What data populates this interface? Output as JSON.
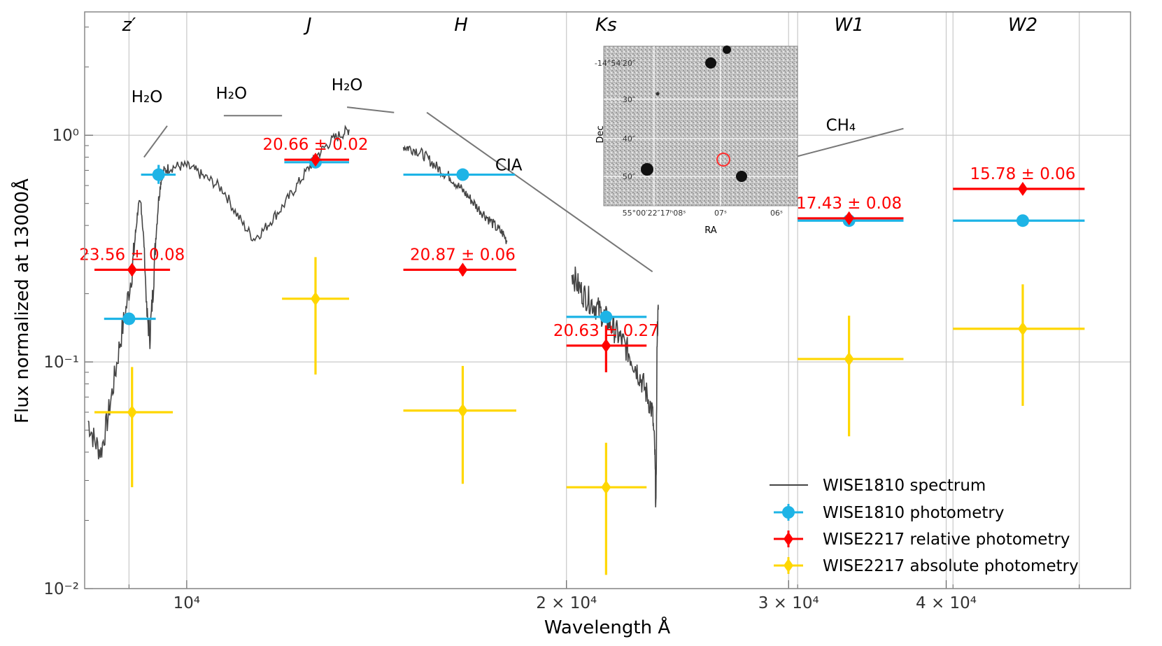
{
  "chart_data": {
    "type": "scatter",
    "title": "",
    "xlabel": "Wavelength Å",
    "ylabel": "Flux normalized at 13000Å",
    "xscale": "log",
    "yscale": "log",
    "xlim": [
      8300,
      56000
    ],
    "ylim": [
      0.01,
      3.5
    ],
    "grid": true,
    "x_ticks": [
      {
        "value": 10000,
        "label": "10⁴"
      },
      {
        "value": 20000,
        "label": "2 × 10⁴"
      },
      {
        "value": 30000,
        "label": "3 × 10⁴"
      },
      {
        "value": 40000,
        "label": "4 × 10⁴"
      }
    ],
    "y_ticks": [
      {
        "value": 1,
        "label": "10⁰"
      },
      {
        "value": 0.1,
        "label": "10⁻¹"
      },
      {
        "value": 0.01,
        "label": "10⁻²"
      }
    ],
    "bands": [
      {
        "name": "z′",
        "x": 9000
      },
      {
        "name": "J",
        "x": 12500
      },
      {
        "name": "H",
        "x": 16500
      },
      {
        "name": "Ks",
        "x": 21500
      },
      {
        "name": "W1",
        "x": 33500
      },
      {
        "name": "W2",
        "x": 46000
      }
    ],
    "band_grid_x": [
      9000,
      30500,
      40500,
      51000
    ],
    "spectrum": {
      "name": "WISE1810 spectrum",
      "color": "#444444",
      "segments": [
        [
          [
            8350,
            0.055
          ],
          [
            8450,
            0.045
          ],
          [
            8550,
            0.04
          ],
          [
            8650,
            0.055
          ],
          [
            8750,
            0.08
          ],
          [
            8850,
            0.12
          ],
          [
            8950,
            0.17
          ],
          [
            9050,
            0.25
          ],
          [
            9100,
            0.35
          ],
          [
            9150,
            0.48
          ],
          [
            9200,
            0.5
          ],
          [
            9250,
            0.33
          ],
          [
            9300,
            0.16
          ],
          [
            9350,
            0.13
          ],
          [
            9400,
            0.2
          ],
          [
            9450,
            0.35
          ],
          [
            9500,
            0.52
          ],
          [
            9550,
            0.66
          ],
          [
            9600,
            0.7
          ],
          [
            9700,
            0.72
          ],
          [
            9850,
            0.73
          ],
          [
            10000,
            0.73
          ],
          [
            10150,
            0.7
          ],
          [
            10300,
            0.66
          ],
          [
            10500,
            0.62
          ],
          [
            10700,
            0.57
          ],
          [
            10900,
            0.47
          ],
          [
            11100,
            0.4
          ],
          [
            11300,
            0.35
          ],
          [
            11500,
            0.38
          ],
          [
            11700,
            0.43
          ],
          [
            11900,
            0.48
          ],
          [
            12100,
            0.55
          ],
          [
            12300,
            0.63
          ],
          [
            12500,
            0.72
          ],
          [
            12700,
            0.82
          ],
          [
            12900,
            0.9
          ],
          [
            13100,
            0.97
          ],
          [
            13300,
            1.02
          ],
          [
            13450,
            1.06
          ]
        ],
        [
          [
            14850,
            0.89
          ],
          [
            15000,
            0.88
          ],
          [
            15200,
            0.86
          ],
          [
            15400,
            0.82
          ],
          [
            15600,
            0.77
          ],
          [
            15800,
            0.72
          ],
          [
            16000,
            0.68
          ],
          [
            16200,
            0.65
          ],
          [
            16400,
            0.6
          ],
          [
            16600,
            0.56
          ],
          [
            16800,
            0.52
          ],
          [
            17000,
            0.48
          ],
          [
            17200,
            0.45
          ],
          [
            17400,
            0.42
          ],
          [
            17600,
            0.39
          ],
          [
            17800,
            0.37
          ],
          [
            17950,
            0.34
          ]
        ],
        [
          [
            20200,
            0.25
          ],
          [
            20400,
            0.22
          ],
          [
            20600,
            0.2
          ],
          [
            20800,
            0.19
          ],
          [
            21000,
            0.18
          ],
          [
            21200,
            0.17
          ],
          [
            21400,
            0.16
          ],
          [
            21600,
            0.15
          ],
          [
            21800,
            0.14
          ],
          [
            22000,
            0.13
          ],
          [
            22200,
            0.12
          ],
          [
            22400,
            0.11
          ],
          [
            22600,
            0.1
          ],
          [
            22800,
            0.09
          ],
          [
            23000,
            0.08
          ],
          [
            23200,
            0.07
          ],
          [
            23400,
            0.06
          ],
          [
            23500,
            0.04
          ],
          [
            23550,
            0.022
          ],
          [
            23600,
            0.13
          ],
          [
            23650,
            0.17
          ]
        ]
      ]
    },
    "series": [
      {
        "name": "WISE1810 photometry",
        "color": "#1EB4E6",
        "marker": "circle",
        "points": [
          {
            "x": 9000,
            "y": 0.155,
            "xerr": [
              8600,
              9450
            ]
          },
          {
            "x": 9500,
            "y": 0.67,
            "xerr": [
              9200,
              9800
            ],
            "yerr": [
              0.61,
              0.74
            ]
          },
          {
            "x": 12650,
            "y": 0.76,
            "xerr": [
              11950,
              13450
            ]
          },
          {
            "x": 16550,
            "y": 0.67,
            "xerr": [
              14850,
              18200
            ]
          },
          {
            "x": 21500,
            "y": 0.158,
            "xerr": [
              20000,
              23150
            ]
          },
          {
            "x": 33500,
            "y": 0.42,
            "xerr": [
              30500,
              37000
            ]
          },
          {
            "x": 46000,
            "y": 0.42,
            "xerr": [
              40500,
              51500
            ]
          }
        ]
      },
      {
        "name": "WISE2217 relative photometry",
        "color": "#ff0000",
        "marker": "diamond",
        "points": [
          {
            "x": 9050,
            "y": 0.255,
            "xerr": [
              8450,
              9700
            ],
            "yerr": [
              0.24,
              0.27
            ],
            "label": "23.56 ± 0.08"
          },
          {
            "x": 12650,
            "y": 0.78,
            "xerr": [
              11950,
              13450
            ],
            "yerr": [
              0.76,
              0.8
            ],
            "label": "20.66 ± 0.02"
          },
          {
            "x": 16550,
            "y": 0.255,
            "xerr": [
              14850,
              18250
            ],
            "yerr": [
              0.24,
              0.27
            ],
            "label": "20.87 ± 0.06"
          },
          {
            "x": 21500,
            "y": 0.118,
            "xerr": [
              20000,
              23150
            ],
            "yerr": [
              0.09,
              0.145
            ],
            "label": "20.63 ± 0.27"
          },
          {
            "x": 33500,
            "y": 0.43,
            "xerr": [
              30500,
              37000
            ],
            "yerr": [
              0.41,
              0.45
            ],
            "label": "17.43 ± 0.08"
          },
          {
            "x": 46000,
            "y": 0.58,
            "xerr": [
              40500,
              51500
            ],
            "yerr": [
              0.55,
              0.61
            ],
            "label": "15.78 ± 0.06"
          }
        ]
      },
      {
        "name": "WISE2217 absolute photometry",
        "color": "#FFD700",
        "marker": "diamond",
        "points": [
          {
            "x": 9050,
            "y": 0.06,
            "xerr": [
              8450,
              9750
            ],
            "yerr": [
              0.028,
              0.095
            ]
          },
          {
            "x": 12650,
            "y": 0.19,
            "xerr": [
              11900,
              13450
            ],
            "yerr": [
              0.088,
              0.29
            ]
          },
          {
            "x": 16550,
            "y": 0.061,
            "xerr": [
              14850,
              18250
            ],
            "yerr": [
              0.029,
              0.096
            ]
          },
          {
            "x": 21500,
            "y": 0.028,
            "xerr": [
              20000,
              23150
            ],
            "yerr": [
              0.0115,
              0.044
            ]
          },
          {
            "x": 33500,
            "y": 0.103,
            "xerr": [
              30500,
              37000
            ],
            "yerr": [
              0.047,
              0.16
            ]
          },
          {
            "x": 46000,
            "y": 0.14,
            "xerr": [
              40500,
              51500
            ],
            "yerr": [
              0.064,
              0.22
            ]
          }
        ]
      }
    ],
    "annotations": [
      {
        "text": "H₂O",
        "x": 9300,
        "y": 1.4,
        "line": [
          [
            9250,
            0.8
          ],
          [
            9650,
            1.1
          ]
        ]
      },
      {
        "text": "H₂O",
        "x": 10850,
        "y": 1.45,
        "line": [
          [
            10700,
            1.22
          ],
          [
            11900,
            1.22
          ]
        ]
      },
      {
        "text": "H₂O",
        "x": 13400,
        "y": 1.58,
        "line": [
          [
            13400,
            1.33
          ],
          [
            14600,
            1.26
          ]
        ]
      },
      {
        "text": "CIA",
        "x": 18000,
        "y": 0.7,
        "line": [
          [
            15500,
            1.26
          ],
          [
            23400,
            0.25
          ]
        ]
      },
      {
        "text": "CH₄",
        "x": 33000,
        "y": 1.05,
        "line": [
          [
            30300,
            0.8
          ],
          [
            37000,
            1.07
          ]
        ]
      }
    ],
    "legend": {
      "position": "bottom-right",
      "entries": [
        "WISE1810 spectrum",
        "WISE1810 photometry",
        "WISE2217 relative photometry",
        "WISE2217 absolute photometry"
      ]
    },
    "inset": {
      "xlabel": "RA",
      "ylabel": "Dec",
      "y_ticks": [
        "-14°54′20″",
        "30″",
        "40″",
        "50″"
      ],
      "x_ticks": [
        "55°00′22″17ʰ08ˢ",
        "07ˢ",
        "06ˢ"
      ]
    }
  }
}
